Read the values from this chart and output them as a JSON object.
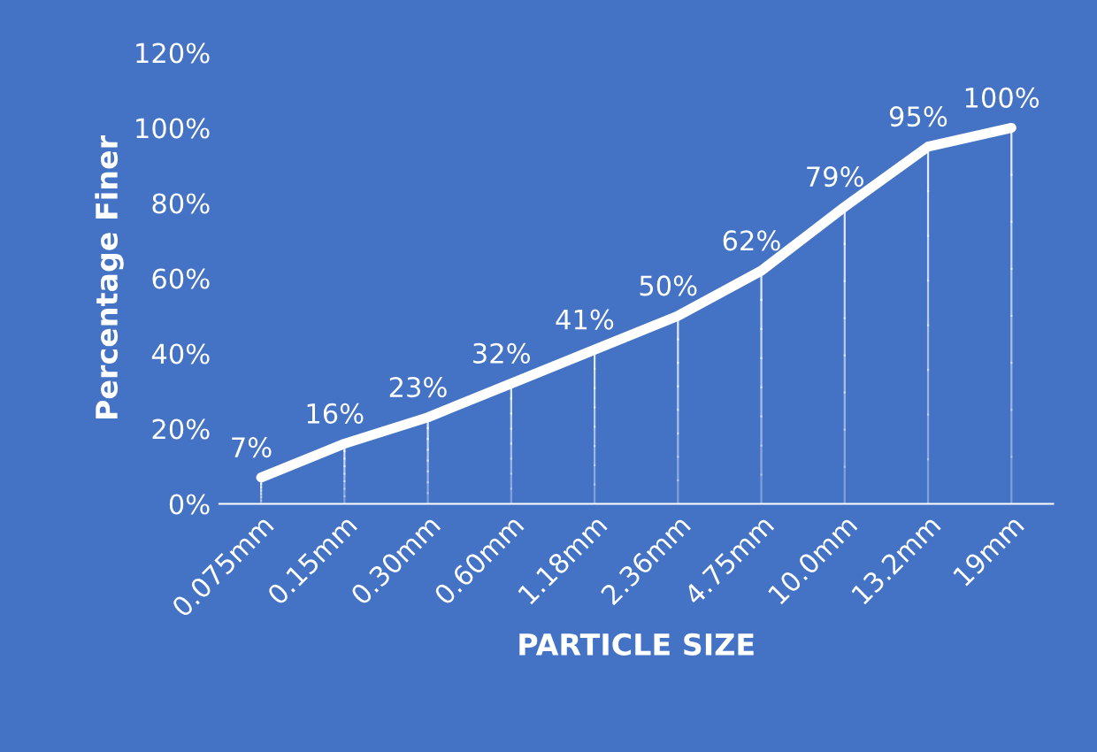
{
  "chart_data": {
    "type": "line",
    "xlabel": "PARTICLE SIZE",
    "ylabel": "Percentage Finer",
    "categories": [
      "0.075mm",
      "0.15mm",
      "0.30mm",
      "0.60mm",
      "1.18mm",
      "2.36mm",
      "4.75mm",
      "10.0mm",
      "13.2mm",
      "19mm"
    ],
    "series": [
      {
        "color": "#ffffff",
        "values": [
          7,
          16,
          23,
          32,
          41,
          50,
          62,
          79,
          95,
          100
        ],
        "value_labels": [
          "7%",
          "16%",
          "23%",
          "32%",
          "41%",
          "50%",
          "62%",
          "79%",
          "95%",
          "100%"
        ]
      }
    ],
    "ylim": [
      0,
      120
    ],
    "yticks": [
      {
        "value": 0,
        "label": "0%"
      },
      {
        "value": 20,
        "label": "20%"
      },
      {
        "value": 40,
        "label": "40%"
      },
      {
        "value": 60,
        "label": "60%"
      },
      {
        "value": 80,
        "label": "80%"
      },
      {
        "value": 100,
        "label": "100%"
      },
      {
        "value": 120,
        "label": "120%"
      }
    ],
    "grid": false,
    "legend": false,
    "marker": "none",
    "line_style": "solid"
  }
}
